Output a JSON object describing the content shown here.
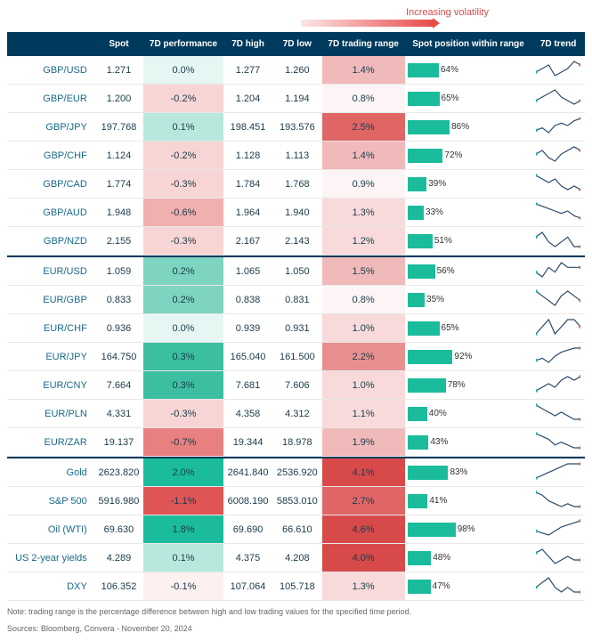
{
  "volatility_label": "Increasing volatility",
  "headers": [
    "",
    "Spot",
    "7D performance",
    "7D high",
    "7D low",
    "7D trading range",
    "Spot position within range",
    "7D trend"
  ],
  "colors": {
    "header_bg": "#003a5d",
    "pos_bar": "#1abc9c",
    "perf_scale_pos": [
      "#e6f7f3",
      "#b8e8dd",
      "#7dd4c0",
      "#3cbfa0",
      "#1abc9c"
    ],
    "perf_scale_neg": [
      "#fdf0f0",
      "#f8d5d5",
      "#f0b0b0",
      "#e88080",
      "#e05555"
    ],
    "range_scale": [
      "#fdf5f5",
      "#f8dada",
      "#f0baba",
      "#e89090",
      "#e06565",
      "#d84a4a"
    ],
    "spark_line": "#2a4a6a",
    "spark_dot_start": "#1abc9c",
    "spark_dot_end": "#e05555"
  },
  "sections": [
    {
      "rows": [
        {
          "name": "GBP/USD",
          "spot": "1.271",
          "perf": 0.0,
          "perf_txt": "0.0%",
          "high": "1.277",
          "low": "1.260",
          "range": 1.4,
          "range_txt": "1.4%",
          "pos": 64,
          "spark": [
            5,
            6,
            7,
            4,
            5,
            6,
            8,
            7
          ]
        },
        {
          "name": "GBP/EUR",
          "spot": "1.200",
          "perf": -0.2,
          "perf_txt": "-0.2%",
          "high": "1.204",
          "low": "1.194",
          "range": 0.8,
          "range_txt": "0.8%",
          "pos": 65,
          "spark": [
            6,
            7,
            8,
            9,
            7,
            6,
            5,
            6
          ]
        },
        {
          "name": "GBP/JPY",
          "spot": "197.768",
          "perf": 0.1,
          "perf_txt": "0.1%",
          "high": "198.451",
          "low": "193.576",
          "range": 2.5,
          "range_txt": "2.5%",
          "pos": 86,
          "spark": [
            4,
            5,
            3,
            6,
            7,
            6,
            8,
            9
          ]
        },
        {
          "name": "GBP/CHF",
          "spot": "1.124",
          "perf": -0.2,
          "perf_txt": "-0.2%",
          "high": "1.128",
          "low": "1.113",
          "range": 1.4,
          "range_txt": "1.4%",
          "pos": 72,
          "spark": [
            6,
            7,
            5,
            4,
            6,
            7,
            8,
            7
          ]
        },
        {
          "name": "GBP/CAD",
          "spot": "1.774",
          "perf": -0.3,
          "perf_txt": "-0.3%",
          "high": "1.784",
          "low": "1.768",
          "range": 0.9,
          "range_txt": "0.9%",
          "pos": 39,
          "spark": [
            8,
            7,
            6,
            7,
            5,
            4,
            5,
            4
          ]
        },
        {
          "name": "GBP/AUD",
          "spot": "1.948",
          "perf": -0.6,
          "perf_txt": "-0.6%",
          "high": "1.964",
          "low": "1.940",
          "range": 1.3,
          "range_txt": "1.3%",
          "pos": 33,
          "spark": [
            9,
            8,
            7,
            6,
            5,
            6,
            4,
            3
          ]
        },
        {
          "name": "GBP/NZD",
          "spot": "2.155",
          "perf": -0.3,
          "perf_txt": "-0.3%",
          "high": "2.167",
          "low": "2.143",
          "range": 1.2,
          "range_txt": "1.2%",
          "pos": 51,
          "spark": [
            7,
            8,
            6,
            5,
            6,
            7,
            5,
            5
          ]
        }
      ]
    },
    {
      "rows": [
        {
          "name": "EUR/USD",
          "spot": "1.059",
          "perf": 0.2,
          "perf_txt": "0.2%",
          "high": "1.065",
          "low": "1.050",
          "range": 1.5,
          "range_txt": "1.5%",
          "pos": 56,
          "spark": [
            5,
            4,
            6,
            5,
            7,
            6,
            6,
            6
          ]
        },
        {
          "name": "EUR/GBP",
          "spot": "0.833",
          "perf": 0.2,
          "perf_txt": "0.2%",
          "high": "0.838",
          "low": "0.831",
          "range": 0.8,
          "range_txt": "0.8%",
          "pos": 35,
          "spark": [
            6,
            5,
            4,
            3,
            5,
            6,
            5,
            4
          ]
        },
        {
          "name": "EUR/CHF",
          "spot": "0.936",
          "perf": 0.0,
          "perf_txt": "0.0%",
          "high": "0.939",
          "low": "0.931",
          "range": 1.0,
          "range_txt": "1.0%",
          "pos": 65,
          "spark": [
            5,
            6,
            7,
            5,
            6,
            7,
            7,
            6
          ]
        },
        {
          "name": "EUR/JPY",
          "spot": "164.750",
          "perf": 0.3,
          "perf_txt": "0.3%",
          "high": "165.040",
          "low": "161.500",
          "range": 2.2,
          "range_txt": "2.2%",
          "pos": 92,
          "spark": [
            3,
            4,
            2,
            5,
            7,
            8,
            9,
            9
          ]
        },
        {
          "name": "EUR/CNY",
          "spot": "7.664",
          "perf": 0.3,
          "perf_txt": "0.3%",
          "high": "7.681",
          "low": "7.606",
          "range": 1.0,
          "range_txt": "1.0%",
          "pos": 78,
          "spark": [
            4,
            5,
            6,
            5,
            7,
            8,
            7,
            8
          ]
        },
        {
          "name": "EUR/PLN",
          "spot": "4.331",
          "perf": -0.3,
          "perf_txt": "-0.3%",
          "high": "4.358",
          "low": "4.312",
          "range": 1.1,
          "range_txt": "1.1%",
          "pos": 40,
          "spark": [
            8,
            7,
            6,
            5,
            6,
            5,
            4,
            4
          ]
        },
        {
          "name": "EUR/ZAR",
          "spot": "19.137",
          "perf": -0.7,
          "perf_txt": "-0.7%",
          "high": "19.344",
          "low": "18.978",
          "range": 1.9,
          "range_txt": "1.9%",
          "pos": 43,
          "spark": [
            9,
            8,
            7,
            5,
            6,
            5,
            4,
            4
          ]
        }
      ]
    },
    {
      "rows": [
        {
          "name": "Gold",
          "spot": "2623.820",
          "perf": 2.0,
          "perf_txt": "2.0%",
          "high": "2641.840",
          "low": "2536.920",
          "range": 4.1,
          "range_txt": "4.1%",
          "pos": 83,
          "spark": [
            3,
            4,
            5,
            6,
            7,
            8,
            8,
            8
          ]
        },
        {
          "name": "S&P 500",
          "spot": "5916.980",
          "perf": -1.1,
          "perf_txt": "-1.1%",
          "high": "6008.190",
          "low": "5853.010",
          "range": 2.7,
          "range_txt": "2.7%",
          "pos": 41,
          "spark": [
            9,
            8,
            6,
            5,
            4,
            5,
            4,
            4
          ]
        },
        {
          "name": "Oil (WTI)",
          "spot": "69.630",
          "perf": 1.8,
          "perf_txt": "1.8%",
          "high": "69.690",
          "low": "66.610",
          "range": 4.6,
          "range_txt": "4.6%",
          "pos": 98,
          "spark": [
            5,
            4,
            3,
            5,
            7,
            8,
            9,
            10
          ]
        },
        {
          "name": "US 2-year yields",
          "spot": "4.289",
          "perf": 0.1,
          "perf_txt": "0.1%",
          "high": "4.375",
          "low": "4.208",
          "range": 4.0,
          "range_txt": "4.0%",
          "pos": 48,
          "spark": [
            7,
            8,
            6,
            4,
            5,
            6,
            5,
            5
          ]
        },
        {
          "name": "DXY",
          "spot": "106.352",
          "perf": -0.1,
          "perf_txt": "-0.1%",
          "high": "107.064",
          "low": "105.718",
          "range": 1.3,
          "range_txt": "1.3%",
          "pos": 47,
          "spark": [
            6,
            7,
            8,
            6,
            5,
            6,
            5,
            5
          ]
        }
      ]
    }
  ],
  "footnote1": "Note: trading range is the percentage difference between high and low trading values for the specified time period.",
  "footnote2": "Sources: Bloomberg, Convera - November 20, 2024"
}
